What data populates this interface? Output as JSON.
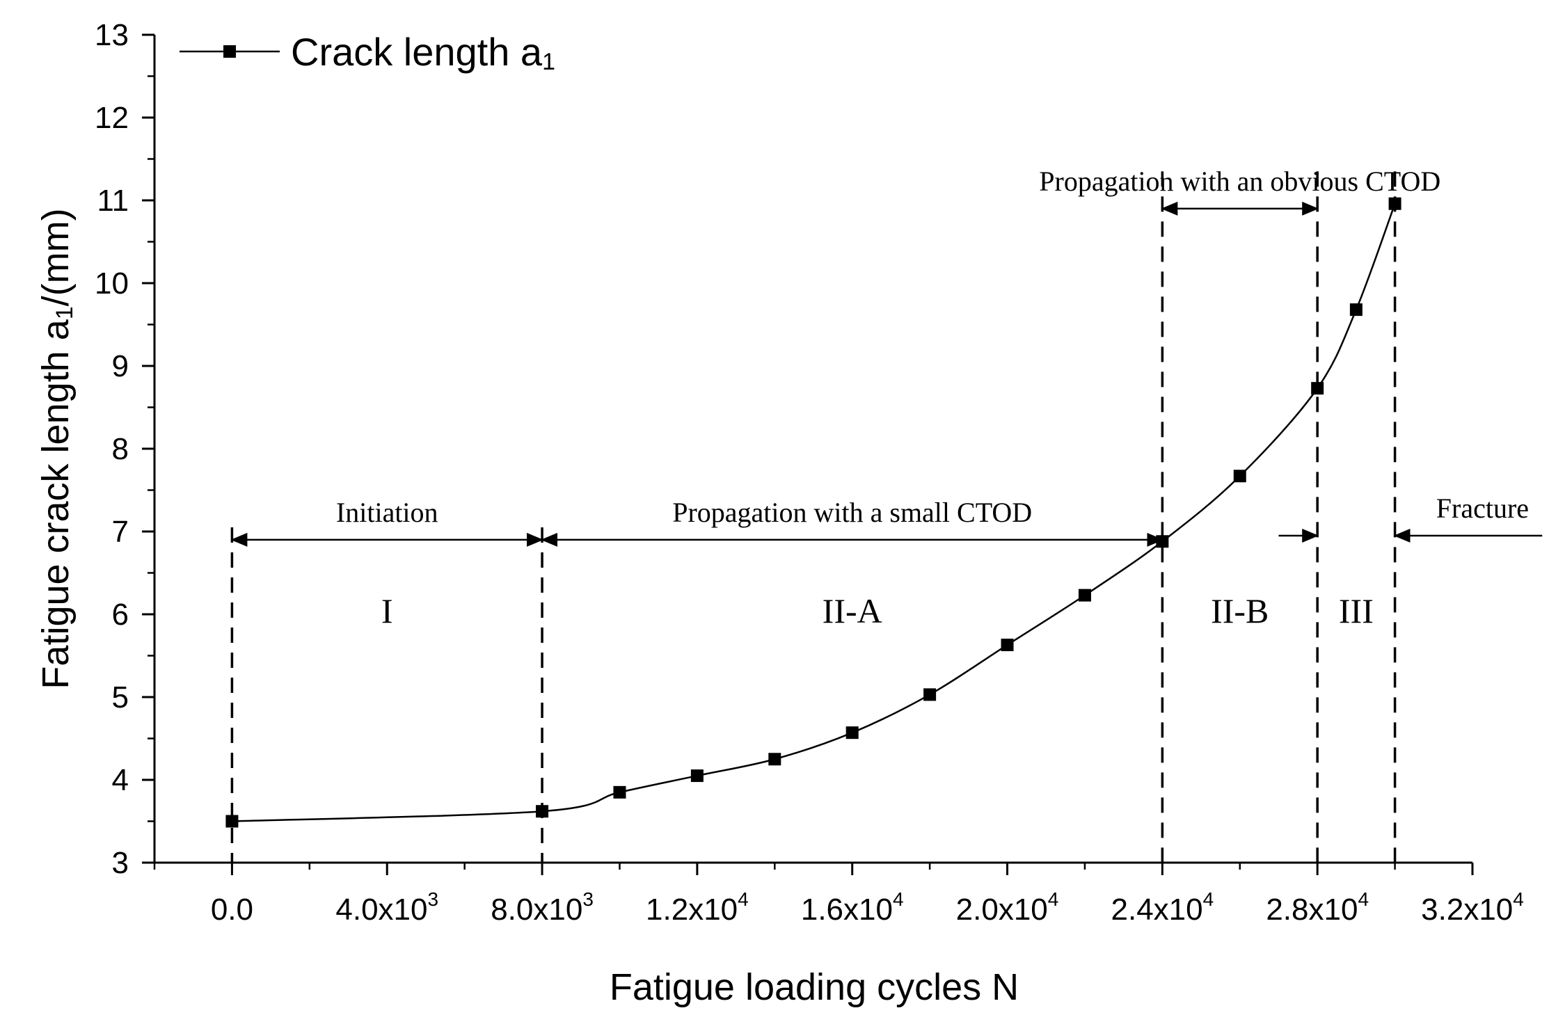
{
  "chart_data": {
    "type": "line",
    "title": "",
    "xlabel": "Fatigue loading cycles N",
    "ylabel": "Fatigue crack length a1/(mm)",
    "xlim": [
      -2000,
      32000
    ],
    "ylim": [
      3,
      13
    ],
    "grid": false,
    "legend_position": "top-left",
    "x_ticks": [
      {
        "value": 0,
        "label": "0.0",
        "exp": ""
      },
      {
        "value": 4000,
        "label": "4.0x10",
        "exp": "3"
      },
      {
        "value": 8000,
        "label": "8.0x10",
        "exp": "3"
      },
      {
        "value": 12000,
        "label": "1.2x10",
        "exp": "4"
      },
      {
        "value": 16000,
        "label": "1.6x10",
        "exp": "4"
      },
      {
        "value": 20000,
        "label": "2.0x10",
        "exp": "4"
      },
      {
        "value": 24000,
        "label": "2.4x10",
        "exp": "4"
      },
      {
        "value": 28000,
        "label": "2.8x10",
        "exp": "4"
      },
      {
        "value": 32000,
        "label": "3.2x10",
        "exp": "4"
      }
    ],
    "y_ticks": [
      3,
      4,
      5,
      6,
      7,
      8,
      9,
      10,
      11,
      12,
      13
    ],
    "series": [
      {
        "name": "Crack length a1",
        "legend_label": "Crack length a",
        "legend_sub": "1",
        "marker": "square",
        "x": [
          0,
          8000,
          10000,
          12000,
          14000,
          16000,
          18000,
          20000,
          22000,
          24000,
          26000,
          28000,
          29000,
          30000
        ],
        "y": [
          3.5,
          3.62,
          3.85,
          4.05,
          4.25,
          4.57,
          5.03,
          5.63,
          6.23,
          6.88,
          7.67,
          8.73,
          9.68,
          10.96
        ]
      }
    ],
    "stage_boundaries": [
      0,
      8000,
      24000,
      28000,
      30000
    ],
    "stage_labels": [
      {
        "text": "I",
        "x": 4000,
        "y": 5.9
      },
      {
        "text": "II-A",
        "x": 16000,
        "y": 5.9
      },
      {
        "text": "II-B",
        "x": 26000,
        "y": 5.9
      },
      {
        "text": "III",
        "x": 29000,
        "y": 5.9
      }
    ],
    "annotations": [
      {
        "text": "Initiation",
        "x_from": 0,
        "x_to": 8000,
        "y": 6.9,
        "kind": "double-arrow"
      },
      {
        "text": "Propagation with a small CTOD",
        "x_from": 8000,
        "x_to": 24000,
        "y": 6.9,
        "kind": "double-arrow"
      },
      {
        "text": "Propagation with an obvious CTOD",
        "x_from": 24000,
        "x_to": 28000,
        "y": 10.9,
        "kind": "double-arrow"
      },
      {
        "text": "",
        "x_from": 27000,
        "x_to": 28000,
        "y": 6.95,
        "kind": "right-arrow"
      },
      {
        "text": "Fracture",
        "x_from": 33800,
        "x_to": 30000,
        "y": 6.95,
        "kind": "left-arrow"
      }
    ],
    "y_label_parts": {
      "pre": "Fatigue crack length a",
      "sub": "1",
      "post": "/(mm)"
    }
  }
}
